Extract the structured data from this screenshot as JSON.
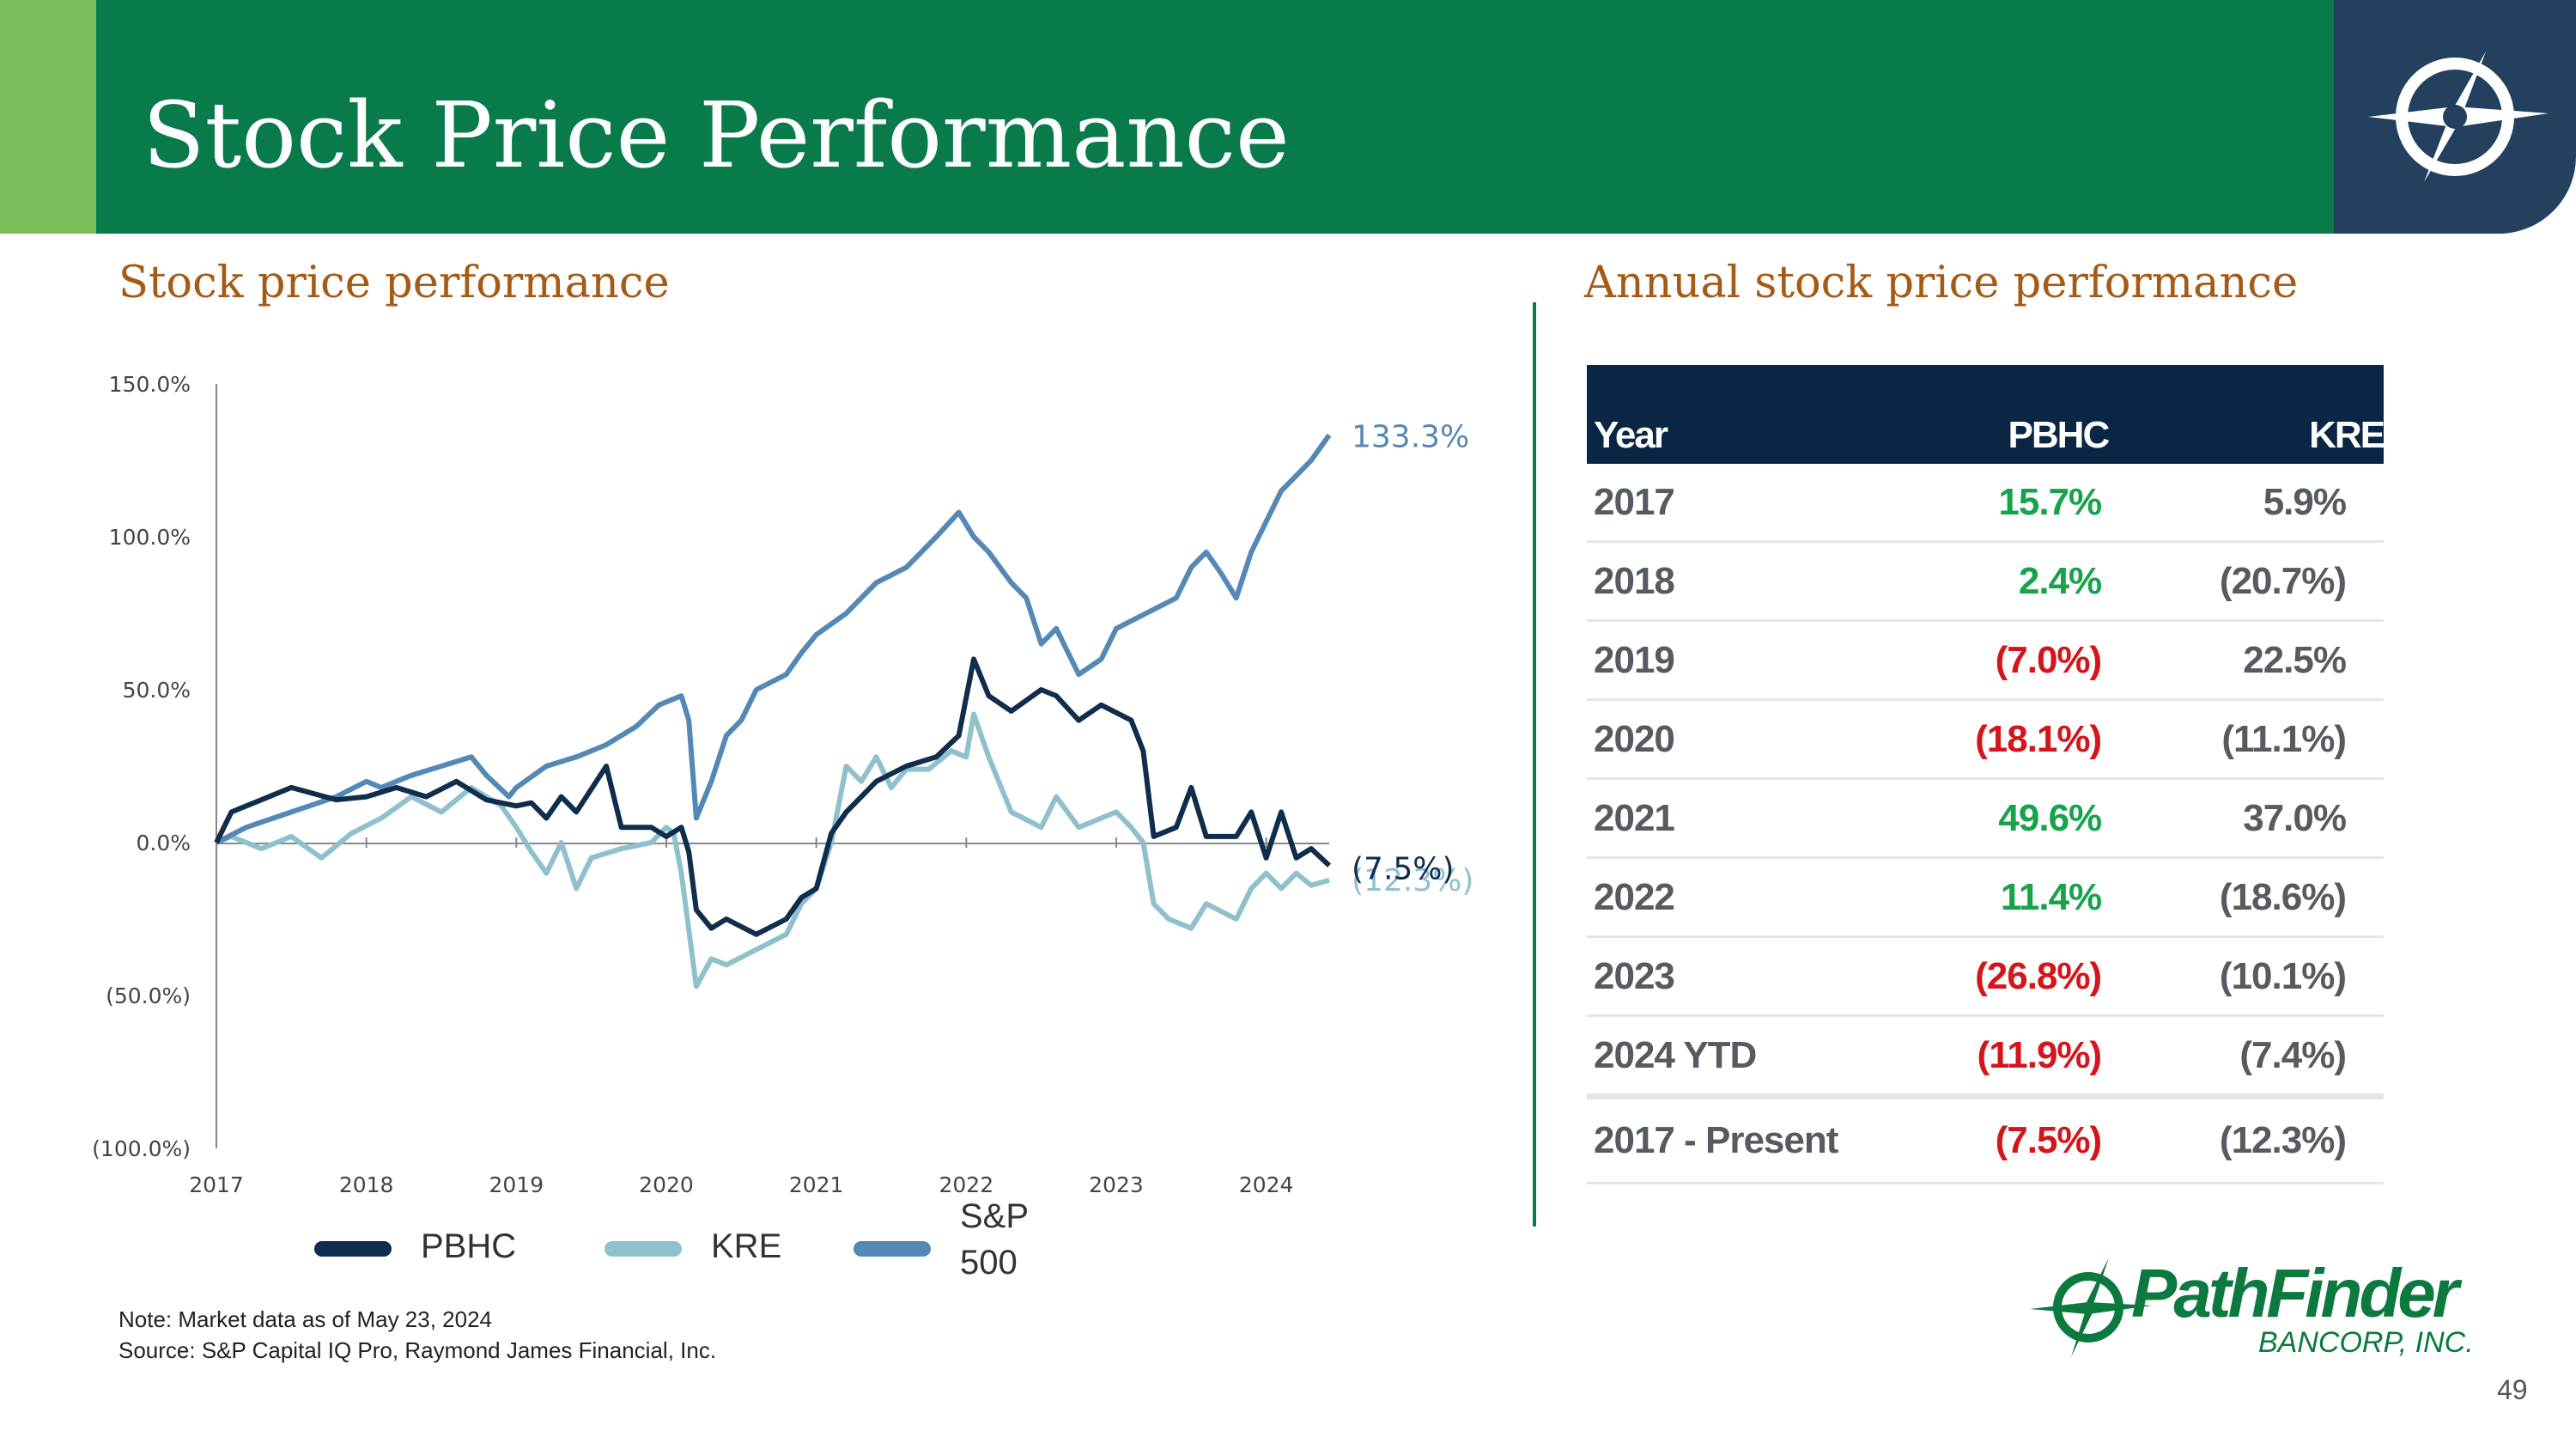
{
  "header": {
    "title": "Stock Price Performance"
  },
  "left_section": {
    "title": "Stock price performance"
  },
  "right_section": {
    "title": "Annual stock price performance"
  },
  "colors": {
    "header_green": "#097a4a",
    "accent_green": "#79c05a",
    "navy": "#23405f",
    "pbhc": "#0f2d4c",
    "kre": "#8fc1cd",
    "sp500": "#5488b5",
    "positive": "#16a34a",
    "negative": "#d4151b"
  },
  "chart_data": {
    "type": "line",
    "title": "Stock price performance",
    "xlabel": "",
    "ylabel": "",
    "x_ticks": [
      "2017",
      "2018",
      "2019",
      "2020",
      "2021",
      "2022",
      "2023",
      "2024"
    ],
    "y_ticks": [
      "150.0%",
      "100.0%",
      "50.0%",
      "0.0%",
      "(50.0%)",
      "(100.0%)"
    ],
    "ylim": [
      -100,
      150
    ],
    "xlim": [
      2017.0,
      2024.42
    ],
    "series": [
      {
        "name": "PBHC",
        "color": "#0f2d4c",
        "end_label": "(7.5%)",
        "points": [
          [
            2017.0,
            0
          ],
          [
            2017.1,
            10
          ],
          [
            2017.3,
            14
          ],
          [
            2017.5,
            18
          ],
          [
            2017.8,
            14
          ],
          [
            2018.0,
            15
          ],
          [
            2018.2,
            18
          ],
          [
            2018.4,
            15
          ],
          [
            2018.6,
            20
          ],
          [
            2018.8,
            14
          ],
          [
            2019.0,
            12
          ],
          [
            2019.1,
            13
          ],
          [
            2019.2,
            8
          ],
          [
            2019.3,
            15
          ],
          [
            2019.4,
            10
          ],
          [
            2019.6,
            25
          ],
          [
            2019.7,
            5
          ],
          [
            2019.9,
            5
          ],
          [
            2020.0,
            2
          ],
          [
            2020.1,
            5
          ],
          [
            2020.15,
            -3
          ],
          [
            2020.2,
            -22
          ],
          [
            2020.3,
            -28
          ],
          [
            2020.4,
            -25
          ],
          [
            2020.6,
            -30
          ],
          [
            2020.8,
            -25
          ],
          [
            2020.9,
            -18
          ],
          [
            2021.0,
            -15
          ],
          [
            2021.1,
            3
          ],
          [
            2021.2,
            10
          ],
          [
            2021.4,
            20
          ],
          [
            2021.6,
            25
          ],
          [
            2021.8,
            28
          ],
          [
            2021.95,
            35
          ],
          [
            2022.05,
            60
          ],
          [
            2022.15,
            48
          ],
          [
            2022.3,
            43
          ],
          [
            2022.5,
            50
          ],
          [
            2022.6,
            48
          ],
          [
            2022.75,
            40
          ],
          [
            2022.9,
            45
          ],
          [
            2023.1,
            40
          ],
          [
            2023.18,
            30
          ],
          [
            2023.25,
            2
          ],
          [
            2023.4,
            5
          ],
          [
            2023.5,
            18
          ],
          [
            2023.6,
            2
          ],
          [
            2023.8,
            2
          ],
          [
            2023.9,
            10
          ],
          [
            2024.0,
            -5
          ],
          [
            2024.1,
            10
          ],
          [
            2024.2,
            -5
          ],
          [
            2024.3,
            -2
          ],
          [
            2024.42,
            -7.5
          ]
        ]
      },
      {
        "name": "KRE",
        "color": "#8fc1cd",
        "end_label": "(12.3%)",
        "points": [
          [
            2017.0,
            0
          ],
          [
            2017.1,
            2
          ],
          [
            2017.3,
            -2
          ],
          [
            2017.5,
            2
          ],
          [
            2017.7,
            -5
          ],
          [
            2017.9,
            3
          ],
          [
            2018.1,
            8
          ],
          [
            2018.3,
            15
          ],
          [
            2018.5,
            10
          ],
          [
            2018.7,
            18
          ],
          [
            2018.9,
            12
          ],
          [
            2019.0,
            5
          ],
          [
            2019.1,
            -3
          ],
          [
            2019.2,
            -10
          ],
          [
            2019.3,
            0
          ],
          [
            2019.4,
            -15
          ],
          [
            2019.5,
            -5
          ],
          [
            2019.7,
            -2
          ],
          [
            2019.9,
            0
          ],
          [
            2020.0,
            5
          ],
          [
            2020.05,
            3
          ],
          [
            2020.1,
            -10
          ],
          [
            2020.2,
            -47
          ],
          [
            2020.3,
            -38
          ],
          [
            2020.4,
            -40
          ],
          [
            2020.6,
            -35
          ],
          [
            2020.8,
            -30
          ],
          [
            2020.9,
            -20
          ],
          [
            2021.0,
            -15
          ],
          [
            2021.1,
            0
          ],
          [
            2021.2,
            25
          ],
          [
            2021.3,
            20
          ],
          [
            2021.4,
            28
          ],
          [
            2021.5,
            18
          ],
          [
            2021.6,
            24
          ],
          [
            2021.75,
            24
          ],
          [
            2021.9,
            30
          ],
          [
            2022.0,
            28
          ],
          [
            2022.05,
            42
          ],
          [
            2022.15,
            28
          ],
          [
            2022.3,
            10
          ],
          [
            2022.5,
            5
          ],
          [
            2022.6,
            15
          ],
          [
            2022.75,
            5
          ],
          [
            2022.9,
            8
          ],
          [
            2023.0,
            10
          ],
          [
            2023.1,
            5
          ],
          [
            2023.18,
            0
          ],
          [
            2023.25,
            -20
          ],
          [
            2023.35,
            -25
          ],
          [
            2023.5,
            -28
          ],
          [
            2023.6,
            -20
          ],
          [
            2023.8,
            -25
          ],
          [
            2023.9,
            -15
          ],
          [
            2024.0,
            -10
          ],
          [
            2024.1,
            -15
          ],
          [
            2024.2,
            -10
          ],
          [
            2024.3,
            -14
          ],
          [
            2024.42,
            -12.3
          ]
        ]
      },
      {
        "name": "S&P 500",
        "color": "#5488b5",
        "end_label": "133.3%",
        "points": [
          [
            2017.0,
            0
          ],
          [
            2017.2,
            5
          ],
          [
            2017.5,
            10
          ],
          [
            2017.8,
            15
          ],
          [
            2018.0,
            20
          ],
          [
            2018.1,
            18
          ],
          [
            2018.3,
            22
          ],
          [
            2018.5,
            25
          ],
          [
            2018.7,
            28
          ],
          [
            2018.8,
            22
          ],
          [
            2018.95,
            15
          ],
          [
            2019.0,
            18
          ],
          [
            2019.2,
            25
          ],
          [
            2019.4,
            28
          ],
          [
            2019.6,
            32
          ],
          [
            2019.8,
            38
          ],
          [
            2019.95,
            45
          ],
          [
            2020.1,
            48
          ],
          [
            2020.15,
            40
          ],
          [
            2020.2,
            8
          ],
          [
            2020.3,
            20
          ],
          [
            2020.4,
            35
          ],
          [
            2020.5,
            40
          ],
          [
            2020.6,
            50
          ],
          [
            2020.8,
            55
          ],
          [
            2020.9,
            62
          ],
          [
            2021.0,
            68
          ],
          [
            2021.2,
            75
          ],
          [
            2021.4,
            85
          ],
          [
            2021.6,
            90
          ],
          [
            2021.8,
            100
          ],
          [
            2021.95,
            108
          ],
          [
            2022.05,
            100
          ],
          [
            2022.15,
            95
          ],
          [
            2022.3,
            85
          ],
          [
            2022.4,
            80
          ],
          [
            2022.5,
            65
          ],
          [
            2022.6,
            70
          ],
          [
            2022.75,
            55
          ],
          [
            2022.9,
            60
          ],
          [
            2023.0,
            70
          ],
          [
            2023.2,
            75
          ],
          [
            2023.4,
            80
          ],
          [
            2023.5,
            90
          ],
          [
            2023.6,
            95
          ],
          [
            2023.7,
            88
          ],
          [
            2023.8,
            80
          ],
          [
            2023.9,
            95
          ],
          [
            2024.0,
            105
          ],
          [
            2024.1,
            115
          ],
          [
            2024.2,
            120
          ],
          [
            2024.3,
            125
          ],
          [
            2024.42,
            133.3
          ]
        ]
      }
    ]
  },
  "legend": {
    "items": [
      {
        "label": "PBHC"
      },
      {
        "label": "KRE"
      },
      {
        "label": "S&P\n500"
      }
    ]
  },
  "notes": {
    "line1": "Note: Market data as of May 23, 2024",
    "line2": "Source: S&P Capital IQ Pro, Raymond James Financial, Inc."
  },
  "table": {
    "headers": [
      "Year",
      "PBHC",
      "KRE"
    ],
    "rows": [
      {
        "year": "2017",
        "pbhc": "15.7%",
        "kre": "5.9%"
      },
      {
        "year": "2018",
        "pbhc": "2.4%",
        "kre": "(20.7%)"
      },
      {
        "year": "2019",
        "pbhc": "(7.0%)",
        "kre": "22.5%"
      },
      {
        "year": "2020",
        "pbhc": "(18.1%)",
        "kre": "(11.1%)"
      },
      {
        "year": "2021",
        "pbhc": "49.6%",
        "kre": "37.0%"
      },
      {
        "year": "2022",
        "pbhc": "11.4%",
        "kre": "(18.6%)"
      },
      {
        "year": "2023",
        "pbhc": "(26.8%)",
        "kre": "(10.1%)"
      },
      {
        "year": "2024 YTD",
        "pbhc": "(11.9%)",
        "kre": "(7.4%)"
      }
    ],
    "total": {
      "year": "2017 - Present",
      "pbhc": "(7.5%)",
      "kre": "(12.3%)"
    }
  },
  "brand": {
    "name": "PathFinder",
    "sub": "BANCORP, INC."
  },
  "page_number": "49"
}
